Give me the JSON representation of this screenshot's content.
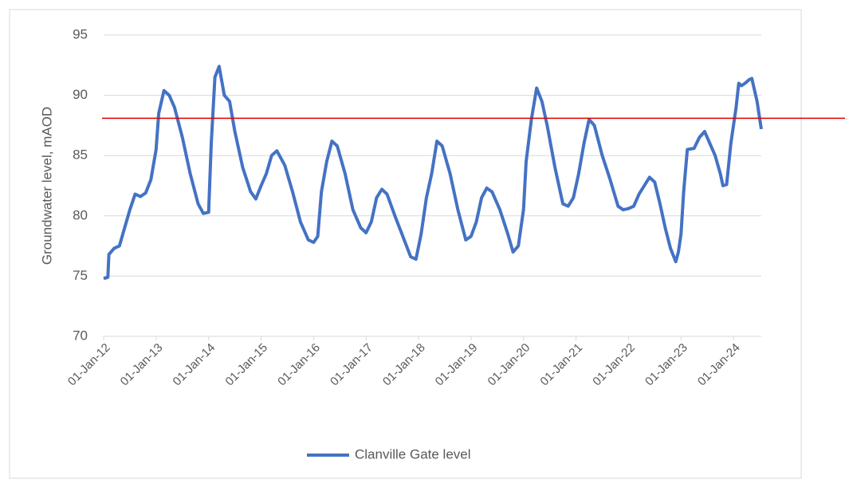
{
  "chart_data": {
    "type": "line",
    "y_label": "Groundwater level, mAOD",
    "x": [
      2012.0,
      2012.08,
      2012.1,
      2012.2,
      2012.3,
      2012.4,
      2012.5,
      2012.6,
      2012.7,
      2012.8,
      2012.9,
      2013.0,
      2013.05,
      2013.15,
      2013.25,
      2013.35,
      2013.5,
      2013.65,
      2013.8,
      2013.9,
      2014.0,
      2014.05,
      2014.12,
      2014.2,
      2014.3,
      2014.4,
      2014.5,
      2014.65,
      2014.8,
      2014.9,
      2015.0,
      2015.1,
      2015.2,
      2015.3,
      2015.45,
      2015.6,
      2015.75,
      2015.9,
      2016.0,
      2016.08,
      2016.15,
      2016.25,
      2016.35,
      2016.45,
      2016.6,
      2016.75,
      2016.9,
      2017.0,
      2017.1,
      2017.2,
      2017.3,
      2017.4,
      2017.55,
      2017.7,
      2017.85,
      2017.95,
      2018.05,
      2018.15,
      2018.25,
      2018.35,
      2018.45,
      2018.6,
      2018.75,
      2018.9,
      2019.0,
      2019.1,
      2019.2,
      2019.3,
      2019.4,
      2019.55,
      2019.7,
      2019.8,
      2019.9,
      2020.0,
      2020.05,
      2020.15,
      2020.25,
      2020.35,
      2020.45,
      2020.6,
      2020.75,
      2020.85,
      2020.95,
      2021.05,
      2021.15,
      2021.25,
      2021.35,
      2021.5,
      2021.65,
      2021.8,
      2021.9,
      2022.0,
      2022.1,
      2022.2,
      2022.3,
      2022.4,
      2022.5,
      2022.6,
      2022.7,
      2022.8,
      2022.9,
      2022.95,
      2023.0,
      2023.05,
      2023.12,
      2023.25,
      2023.35,
      2023.45,
      2023.55,
      2023.65,
      2023.75,
      2023.8,
      2023.87,
      2023.95,
      2024.05,
      2024.1,
      2024.15,
      2024.22,
      2024.3,
      2024.35,
      2024.45,
      2024.53
    ],
    "series": [
      {
        "name": "Clanville Gate level",
        "color": "#4472c4",
        "values": [
          74.8,
          74.9,
          76.8,
          77.3,
          77.5,
          79,
          80.5,
          81.8,
          81.6,
          81.9,
          83,
          85.5,
          88.5,
          90.4,
          90,
          89,
          86.5,
          83.5,
          81,
          80.2,
          80.3,
          86,
          91.5,
          92.4,
          90,
          89.5,
          87,
          84,
          82,
          81.4,
          82.5,
          83.5,
          85,
          85.4,
          84.2,
          82,
          79.5,
          78,
          77.8,
          78.3,
          82,
          84.5,
          86.2,
          85.8,
          83.5,
          80.5,
          79,
          78.6,
          79.5,
          81.5,
          82.2,
          81.8,
          80,
          78.3,
          76.6,
          76.4,
          78.5,
          81.5,
          83.5,
          86.2,
          85.8,
          83.5,
          80.5,
          78,
          78.3,
          79.5,
          81.5,
          82.3,
          82,
          80.5,
          78.5,
          77,
          77.5,
          80.5,
          84.5,
          88,
          90.6,
          89.5,
          87.5,
          84,
          81,
          80.8,
          81.5,
          83.5,
          86,
          88,
          87.5,
          85,
          83,
          80.8,
          80.5,
          80.6,
          80.8,
          81.8,
          82.5,
          83.2,
          82.8,
          81,
          79,
          77.3,
          76.2,
          77,
          78.5,
          82,
          85.5,
          85.6,
          86.5,
          87,
          86,
          85,
          83.5,
          82.5,
          82.6,
          86,
          89,
          91,
          90.8,
          91,
          91.3,
          91.4,
          89.5,
          87.2
        ]
      }
    ],
    "reference_line": {
      "value": 88.1,
      "color": "#e00000"
    },
    "xlim": [
      2012,
      2024.53
    ],
    "xticks": [
      {
        "value": 2012,
        "label": "01-Jan-12"
      },
      {
        "value": 2013,
        "label": "01-Jan-13"
      },
      {
        "value": 2014,
        "label": "01-Jan-14"
      },
      {
        "value": 2015,
        "label": "01-Jan-15"
      },
      {
        "value": 2016,
        "label": "01-Jan-16"
      },
      {
        "value": 2017,
        "label": "01-Jan-17"
      },
      {
        "value": 2018,
        "label": "01-Jan-18"
      },
      {
        "value": 2019,
        "label": "01-Jan-19"
      },
      {
        "value": 2020,
        "label": "01-Jan-20"
      },
      {
        "value": 2021,
        "label": "01-Jan-21"
      },
      {
        "value": 2022,
        "label": "01-Jan-22"
      },
      {
        "value": 2023,
        "label": "01-Jan-23"
      },
      {
        "value": 2024,
        "label": "01-Jan-24"
      }
    ],
    "ylim": [
      70,
      95
    ],
    "yticks": [
      70,
      75,
      80,
      85,
      90,
      95
    ],
    "grid": true,
    "legend": "bottom"
  }
}
